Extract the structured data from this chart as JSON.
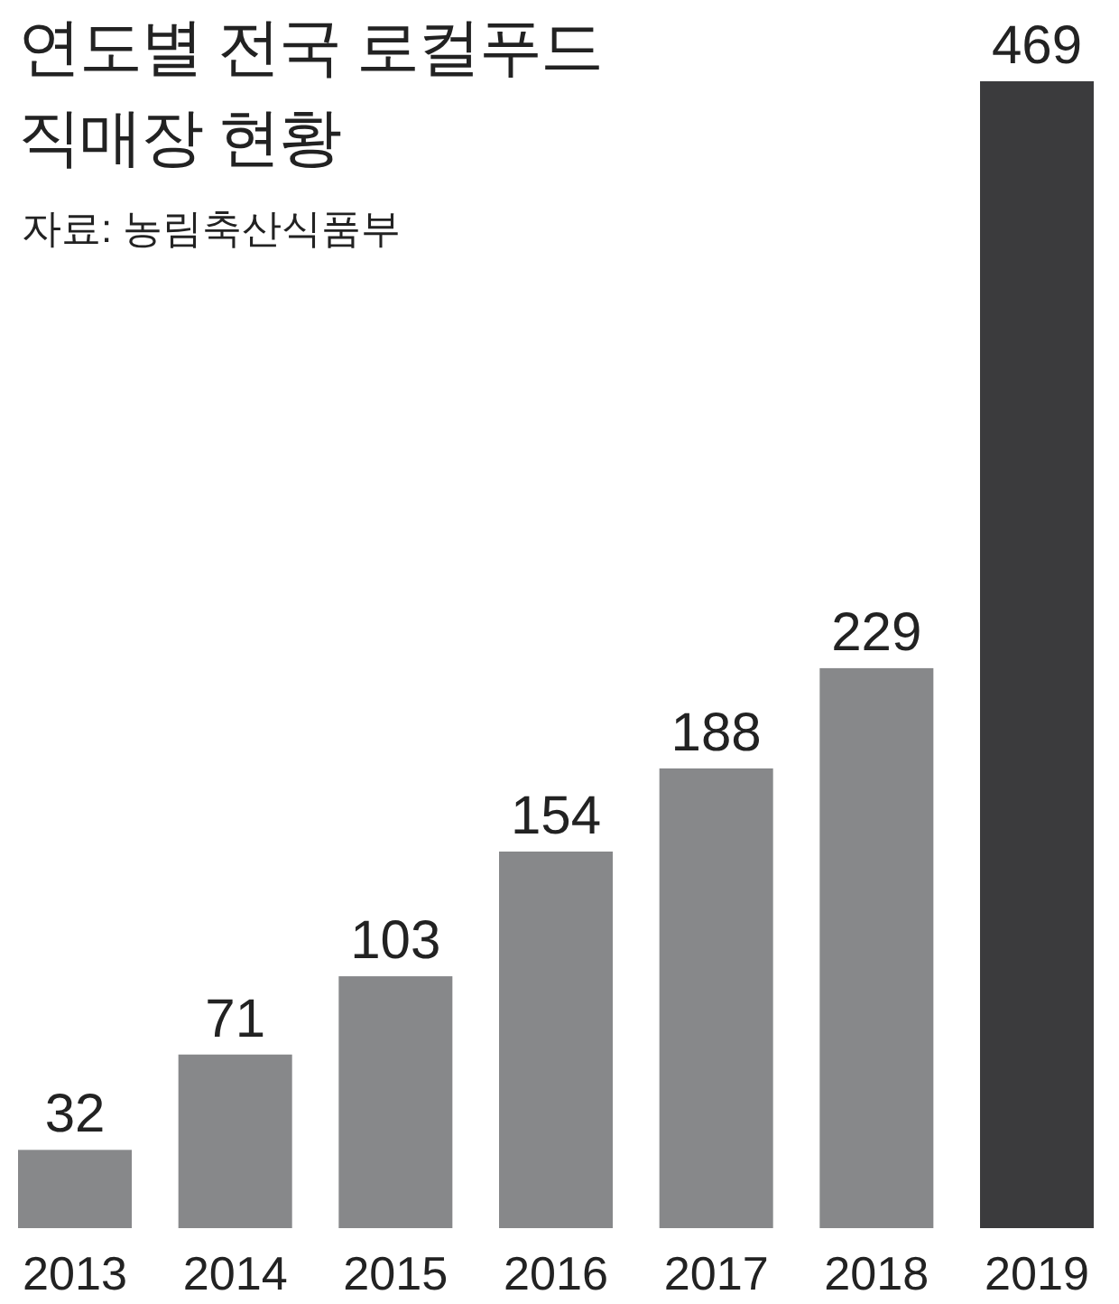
{
  "chart_data": {
    "type": "bar",
    "title": "연도별 전국 로컬푸드 직매장 현황",
    "annotations": [
      "자료: 농림축산식품부"
    ],
    "categories": [
      "2013",
      "2014",
      "2015",
      "2016",
      "2017",
      "2018",
      "2019"
    ],
    "values": [
      32,
      71,
      103,
      154,
      188,
      229,
      469
    ],
    "colors": [
      "#87888a",
      "#87888a",
      "#87888a",
      "#87888a",
      "#87888a",
      "#87888a",
      "#3b3b3d"
    ],
    "data_labels": true
  }
}
